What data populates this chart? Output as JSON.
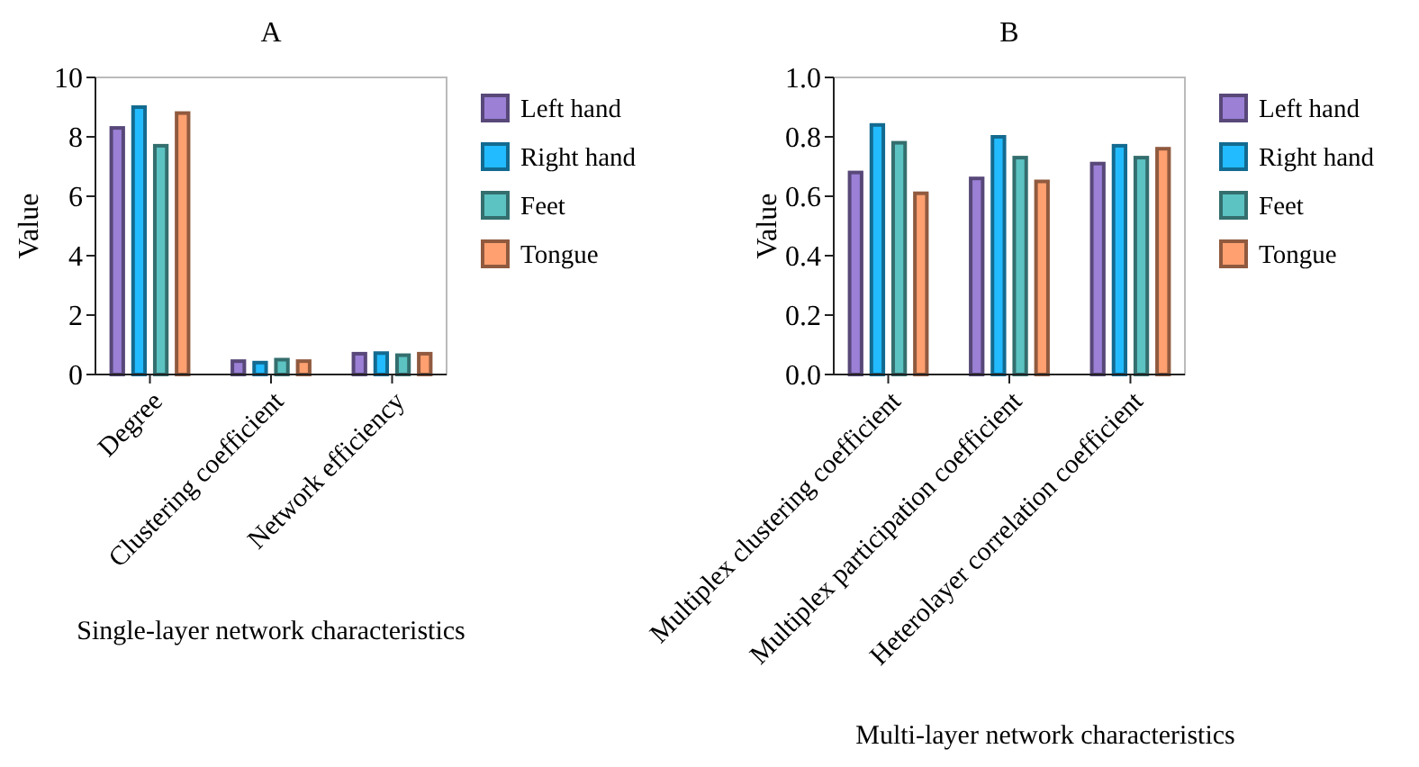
{
  "chart_data": [
    {
      "type": "bar",
      "title": "A",
      "xlabel": "Single-layer network characteristics",
      "ylabel": "Value",
      "categories": [
        "Degree",
        "Clustering coefficient",
        "Network efficiency"
      ],
      "ylim": [
        0,
        10
      ],
      "yticks": [
        0,
        2,
        4,
        6,
        8,
        10
      ],
      "legend": "right",
      "grid": false,
      "series": [
        {
          "name": "Left hand",
          "color": "#9b80d6",
          "values": [
            8.3,
            0.45,
            0.7
          ]
        },
        {
          "name": "Right hand",
          "color": "#22bbff",
          "values": [
            9.0,
            0.4,
            0.72
          ]
        },
        {
          "name": "Feet",
          "color": "#5cc2c2",
          "values": [
            7.7,
            0.5,
            0.65
          ]
        },
        {
          "name": "Tongue",
          "color": "#ffa070",
          "values": [
            8.8,
            0.45,
            0.7
          ]
        }
      ]
    },
    {
      "type": "bar",
      "title": "B",
      "xlabel": "Multi-layer network characteristics",
      "ylabel": "Value",
      "categories": [
        "Multiplex clustering coefficient",
        "Multiplex participation coefficient",
        "Heterolayer correlation coefficient"
      ],
      "ylim": [
        0,
        1
      ],
      "yticks": [
        {
          "value": 0,
          "label": "0.0"
        },
        {
          "value": 0.2,
          "label": "0.2"
        },
        {
          "value": 0.4,
          "label": "0.4"
        },
        {
          "value": 0.6,
          "label": "0.6"
        },
        {
          "value": 0.8,
          "label": "0.8"
        },
        {
          "value": 1,
          "label": "1.0"
        }
      ],
      "legend": "right",
      "grid": false,
      "series": [
        {
          "name": "Left hand",
          "color": "#9b80d6",
          "values": [
            0.68,
            0.66,
            0.71
          ]
        },
        {
          "name": "Right hand",
          "color": "#22bbff",
          "values": [
            0.84,
            0.8,
            0.77
          ]
        },
        {
          "name": "Feet",
          "color": "#5cc2c2",
          "values": [
            0.78,
            0.73,
            0.73
          ]
        },
        {
          "name": "Tongue",
          "color": "#ffa070",
          "values": [
            0.61,
            0.65,
            0.76
          ]
        }
      ]
    }
  ]
}
